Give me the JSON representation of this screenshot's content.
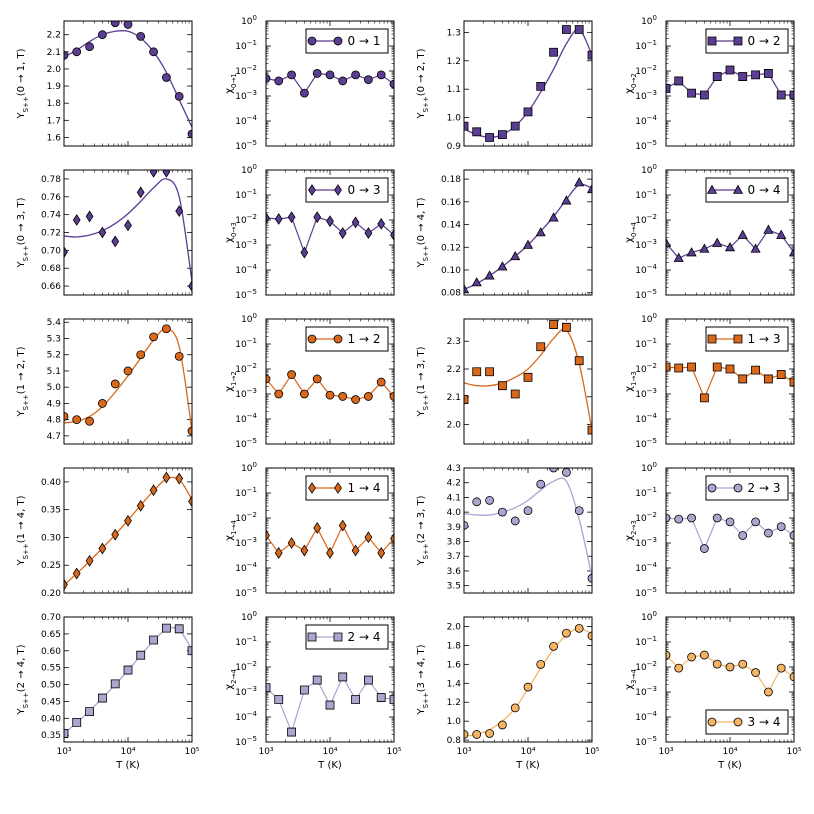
{
  "figure": {
    "x_axis_label": "T (K)",
    "x_tick_labels": [
      "10³",
      "10⁴",
      "10⁵"
    ]
  },
  "colors": {
    "0": "#5b3d92",
    "1": "#d9681b",
    "2": "#aaa6d0",
    "3": "#f5b463"
  },
  "chart_data": [
    {
      "type": "line",
      "panel": "upsilon",
      "transition": "0 → 1",
      "series_color": "0",
      "marker": "circle",
      "ylabel": "Υ_{S++}(0 → 1, T)",
      "ylim": [
        1.55,
        2.28
      ],
      "yticks": [
        "1.6",
        "1.7",
        "1.8",
        "1.9",
        "2.0",
        "2.1",
        "2.2"
      ],
      "ytick_values": [
        1.6,
        1.7,
        1.8,
        1.9,
        2.0,
        2.1,
        2.2
      ],
      "x": [
        1000,
        1580,
        2510,
        3980,
        6310,
        10000,
        15800,
        25100,
        39800,
        63100,
        100000
      ],
      "points": [
        2.08,
        2.1,
        2.13,
        2.2,
        2.27,
        2.26,
        2.19,
        2.1,
        1.95,
        1.84,
        1.62
      ],
      "fit": [
        2.07,
        2.11,
        2.16,
        2.2,
        2.22,
        2.22,
        2.18,
        2.1,
        1.98,
        1.82,
        1.66
      ]
    },
    {
      "type": "line",
      "panel": "chi",
      "transition": "0 → 1",
      "series_color": "0",
      "marker": "circle",
      "ylabel": "χ_{0→1}",
      "legend": "0 → 1",
      "legend_pos": "top",
      "points": [
        0.005,
        0.004,
        0.007,
        0.0013,
        0.008,
        0.007,
        0.004,
        0.007,
        0.0045,
        0.007,
        0.003
      ]
    },
    {
      "type": "line",
      "panel": "upsilon",
      "transition": "0 → 2",
      "series_color": "0",
      "marker": "square",
      "ylabel": "Υ_{S++}(0 → 2, T)",
      "ylim": [
        0.9,
        1.34
      ],
      "yticks": [
        "0.9",
        "1.0",
        "1.1",
        "1.2",
        "1.3"
      ],
      "ytick_values": [
        0.9,
        1.0,
        1.1,
        1.2,
        1.3
      ],
      "x": [
        1000,
        1580,
        2510,
        3980,
        6310,
        10000,
        15800,
        25100,
        39800,
        63100,
        100000
      ],
      "points": [
        0.97,
        0.95,
        0.93,
        0.94,
        0.97,
        1.02,
        1.11,
        1.23,
        1.31,
        1.31,
        1.22
      ],
      "fit": [
        0.96,
        0.94,
        0.93,
        0.94,
        0.97,
        1.02,
        1.09,
        1.17,
        1.26,
        1.31,
        1.22
      ]
    },
    {
      "type": "line",
      "panel": "chi",
      "transition": "0 → 2",
      "series_color": "0",
      "marker": "square",
      "ylabel": "χ_{0→2}",
      "legend": "0 → 2",
      "legend_pos": "top",
      "points": [
        0.002,
        0.004,
        0.0013,
        0.0011,
        0.006,
        0.011,
        0.006,
        0.007,
        0.008,
        0.0011,
        0.0011
      ]
    },
    {
      "type": "line",
      "panel": "upsilon",
      "transition": "0 → 3",
      "series_color": "0",
      "marker": "diamond",
      "ylabel": "Υ_{S++}(0 → 3, T)",
      "ylim": [
        0.65,
        0.79
      ],
      "yticks": [
        "0.66",
        "0.68",
        "0.70",
        "0.72",
        "0.74",
        "0.76",
        "0.78"
      ],
      "ytick_values": [
        0.66,
        0.68,
        0.7,
        0.72,
        0.74,
        0.76,
        0.78
      ],
      "x": [
        1000,
        1580,
        2510,
        3980,
        6310,
        10000,
        15800,
        25100,
        39800,
        63100,
        100000
      ],
      "points": [
        0.698,
        0.734,
        0.738,
        0.72,
        0.71,
        0.728,
        0.765,
        0.788,
        0.788,
        0.744,
        0.66
      ],
      "fit": [
        0.716,
        0.715,
        0.717,
        0.722,
        0.73,
        0.741,
        0.755,
        0.77,
        0.78,
        0.76,
        0.665
      ]
    },
    {
      "type": "line",
      "panel": "chi",
      "transition": "0 → 3",
      "series_color": "0",
      "marker": "diamond",
      "ylabel": "χ_{0→3}",
      "legend": "0 → 3",
      "legend_pos": "top",
      "points": [
        0.012,
        0.011,
        0.013,
        0.0005,
        0.013,
        0.009,
        0.003,
        0.008,
        0.003,
        0.007,
        0.0025
      ]
    },
    {
      "type": "line",
      "panel": "upsilon",
      "transition": "0 → 4",
      "series_color": "0",
      "marker": "triangle",
      "ylabel": "Υ_{S++}(0 → 4, T)",
      "ylim": [
        0.078,
        0.188
      ],
      "yticks": [
        "0.08",
        "0.10",
        "0.12",
        "0.14",
        "0.16",
        "0.18"
      ],
      "ytick_values": [
        0.08,
        0.1,
        0.12,
        0.14,
        0.16,
        0.18
      ],
      "x": [
        1000,
        1580,
        2510,
        3980,
        6310,
        10000,
        15800,
        25100,
        39800,
        63100,
        100000
      ],
      "points": [
        0.083,
        0.089,
        0.095,
        0.103,
        0.112,
        0.122,
        0.133,
        0.146,
        0.161,
        0.177,
        0.171
      ],
      "fit": [
        0.083,
        0.088,
        0.095,
        0.103,
        0.112,
        0.122,
        0.134,
        0.147,
        0.162,
        0.175,
        0.172
      ]
    },
    {
      "type": "line",
      "panel": "chi",
      "transition": "0 → 4",
      "series_color": "0",
      "marker": "triangle",
      "ylabel": "χ_{0→4}",
      "legend": "0 → 4",
      "legend_pos": "top",
      "points": [
        0.0012,
        0.0003,
        0.0005,
        0.0007,
        0.0012,
        0.0008,
        0.0025,
        0.0007,
        0.004,
        0.0025,
        0.0005
      ]
    },
    {
      "type": "line",
      "panel": "upsilon",
      "transition": "1 → 2",
      "series_color": "1",
      "marker": "circle",
      "ylabel": "Υ_{S++}(1 → 2, T)",
      "ylim": [
        4.65,
        5.42
      ],
      "yticks": [
        "4.7",
        "4.8",
        "4.9",
        "5.0",
        "5.1",
        "5.2",
        "5.3",
        "5.4"
      ],
      "ytick_values": [
        4.7,
        4.8,
        4.9,
        5.0,
        5.1,
        5.2,
        5.3,
        5.4
      ],
      "x": [
        1000,
        1580,
        2510,
        3980,
        6310,
        10000,
        15800,
        25100,
        39800,
        63100,
        100000
      ],
      "points": [
        4.82,
        4.8,
        4.79,
        4.9,
        5.02,
        5.1,
        5.2,
        5.31,
        5.36,
        5.19,
        4.73
      ],
      "fit": [
        4.78,
        4.79,
        4.82,
        4.88,
        4.97,
        5.07,
        5.18,
        5.29,
        5.36,
        5.25,
        4.73
      ]
    },
    {
      "type": "line",
      "panel": "chi",
      "transition": "1 → 2",
      "series_color": "1",
      "marker": "circle",
      "ylabel": "χ_{1→2}",
      "legend": "1 → 2",
      "legend_pos": "top",
      "points": [
        0.004,
        0.001,
        0.006,
        0.001,
        0.004,
        0.0009,
        0.0008,
        0.0006,
        0.0008,
        0.003,
        0.0008
      ]
    },
    {
      "type": "line",
      "panel": "upsilon",
      "transition": "1 → 3",
      "series_color": "1",
      "marker": "square",
      "ylabel": "Υ_{S++}(1 → 3, T)",
      "ylim": [
        1.93,
        2.38
      ],
      "yticks": [
        "2.0",
        "2.1",
        "2.2",
        "2.3"
      ],
      "ytick_values": [
        2.0,
        2.1,
        2.2,
        2.3
      ],
      "x": [
        1000,
        1580,
        2510,
        3980,
        6310,
        10000,
        15800,
        25100,
        39800,
        63100,
        100000
      ],
      "points": [
        2.09,
        2.19,
        2.19,
        2.14,
        2.11,
        2.17,
        2.28,
        2.36,
        2.35,
        2.23,
        1.98
      ],
      "fit": [
        2.15,
        2.14,
        2.14,
        2.15,
        2.17,
        2.2,
        2.25,
        2.31,
        2.34,
        2.22,
        1.98
      ]
    },
    {
      "type": "line",
      "panel": "chi",
      "transition": "1 → 3",
      "series_color": "1",
      "marker": "square",
      "ylabel": "χ_{1→3}",
      "legend": "1 → 3",
      "legend_pos": "top",
      "points": [
        0.012,
        0.011,
        0.012,
        0.0007,
        0.012,
        0.01,
        0.004,
        0.009,
        0.004,
        0.006,
        0.003
      ]
    },
    {
      "type": "line",
      "panel": "upsilon",
      "transition": "1 → 4",
      "series_color": "1",
      "marker": "diamond",
      "ylabel": "Υ_{S++}(1 → 4, T)",
      "ylim": [
        0.2,
        0.425
      ],
      "yticks": [
        "0.20",
        "0.25",
        "0.30",
        "0.35",
        "0.40"
      ],
      "ytick_values": [
        0.2,
        0.25,
        0.3,
        0.35,
        0.4
      ],
      "x": [
        1000,
        1580,
        2510,
        3980,
        6310,
        10000,
        15800,
        25100,
        39800,
        63100,
        100000
      ],
      "points": [
        0.215,
        0.235,
        0.258,
        0.28,
        0.305,
        0.33,
        0.357,
        0.385,
        0.408,
        0.406,
        0.365
      ],
      "fit": [
        0.214,
        0.235,
        0.257,
        0.281,
        0.305,
        0.331,
        0.358,
        0.384,
        0.405,
        0.404,
        0.368
      ]
    },
    {
      "type": "line",
      "panel": "chi",
      "transition": "1 → 4",
      "series_color": "1",
      "marker": "diamond",
      "ylabel": "χ_{1→4}",
      "legend": "1 → 4",
      "legend_pos": "top",
      "points": [
        0.002,
        0.0004,
        0.001,
        0.0005,
        0.004,
        0.0004,
        0.005,
        0.0005,
        0.0017,
        0.0004,
        0.0015
      ]
    },
    {
      "type": "line",
      "panel": "upsilon",
      "transition": "2 → 3",
      "series_color": "2",
      "marker": "circle",
      "ylabel": "Υ_{S++}(2 → 3, T)",
      "ylim": [
        3.45,
        4.3
      ],
      "yticks": [
        "3.5",
        "3.6",
        "3.7",
        "3.8",
        "3.9",
        "4.0",
        "4.1",
        "4.2",
        "4.3"
      ],
      "ytick_values": [
        3.5,
        3.6,
        3.7,
        3.8,
        3.9,
        4.0,
        4.1,
        4.2,
        4.3
      ],
      "x": [
        1000,
        1580,
        2510,
        3980,
        6310,
        10000,
        15800,
        25100,
        39800,
        63100,
        100000
      ],
      "points": [
        3.91,
        4.07,
        4.08,
        4.0,
        3.94,
        4.01,
        4.19,
        4.3,
        4.27,
        4.01,
        3.55
      ],
      "fit": [
        3.99,
        3.98,
        3.98,
        4.0,
        4.03,
        4.08,
        4.15,
        4.21,
        4.21,
        3.95,
        3.56
      ]
    },
    {
      "type": "line",
      "panel": "chi",
      "transition": "2 → 3",
      "series_color": "2",
      "marker": "circle",
      "ylabel": "χ_{2→3}",
      "legend": "2 → 3",
      "legend_pos": "top",
      "points": [
        0.01,
        0.009,
        0.01,
        0.0006,
        0.01,
        0.007,
        0.002,
        0.007,
        0.0025,
        0.0045,
        0.002
      ]
    },
    {
      "type": "line",
      "panel": "upsilon",
      "transition": "2 → 4",
      "series_color": "2",
      "marker": "square",
      "ylabel": "Υ_{S++}(2 → 4, T)",
      "ylim": [
        0.33,
        0.7
      ],
      "yticks": [
        "0.35",
        "0.40",
        "0.45",
        "0.50",
        "0.55",
        "0.60",
        "0.65",
        "0.70"
      ],
      "ytick_values": [
        0.35,
        0.4,
        0.45,
        0.5,
        0.55,
        0.6,
        0.65,
        0.7
      ],
      "x": [
        1000,
        1580,
        2510,
        3980,
        6310,
        10000,
        15800,
        25100,
        39800,
        63100,
        100000
      ],
      "points": [
        0.355,
        0.388,
        0.42,
        0.46,
        0.502,
        0.543,
        0.587,
        0.632,
        0.667,
        0.665,
        0.6
      ],
      "fit": [
        0.355,
        0.387,
        0.422,
        0.46,
        0.5,
        0.542,
        0.586,
        0.63,
        0.663,
        0.662,
        0.602
      ]
    },
    {
      "type": "line",
      "panel": "chi",
      "transition": "2 → 4",
      "series_color": "2",
      "marker": "square",
      "ylabel": "χ_{2→4}",
      "legend": "2 → 4",
      "legend_pos": "top",
      "points": [
        0.0015,
        0.0005,
        2.5e-05,
        0.0012,
        0.003,
        0.0003,
        0.004,
        0.0005,
        0.003,
        0.0006,
        0.0005
      ]
    },
    {
      "type": "line",
      "panel": "upsilon",
      "transition": "3 → 4",
      "series_color": "3",
      "marker": "circle",
      "ylabel": "Υ_{S++}(3 → 4, T)",
      "ylim": [
        0.78,
        2.1
      ],
      "yticks": [
        "0.8",
        "1.0",
        "1.2",
        "1.4",
        "1.6",
        "1.8",
        "2.0"
      ],
      "ytick_values": [
        0.8,
        1.0,
        1.2,
        1.4,
        1.6,
        1.8,
        2.0
      ],
      "x": [
        1000,
        1580,
        2510,
        3980,
        6310,
        10000,
        15800,
        25100,
        39800,
        63100,
        100000
      ],
      "points": [
        0.86,
        0.86,
        0.87,
        0.96,
        1.14,
        1.36,
        1.6,
        1.79,
        1.93,
        1.98,
        1.9
      ],
      "fit": [
        0.84,
        0.86,
        0.91,
        1.0,
        1.14,
        1.34,
        1.56,
        1.76,
        1.91,
        1.98,
        1.92
      ]
    },
    {
      "type": "line",
      "panel": "chi",
      "transition": "3 → 4",
      "series_color": "3",
      "marker": "circle",
      "ylabel": "χ_{3→4}",
      "legend": "3 → 4",
      "legend_pos": "bottom",
      "points": [
        0.03,
        0.009,
        0.025,
        0.03,
        0.013,
        0.01,
        0.013,
        0.006,
        0.001,
        0.009,
        0.004
      ]
    }
  ]
}
